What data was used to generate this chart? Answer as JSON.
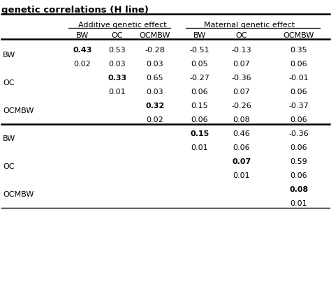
{
  "title": "genetic correlations (H line)",
  "col_headers": [
    "BW",
    "OC",
    "OCMBW",
    "BW",
    "OC",
    "OCMBW"
  ],
  "row_labels": [
    "BW",
    "OC",
    "OCMBW",
    "BW",
    "OC",
    "OCMBW"
  ],
  "additive_label": "Additive genetic effect",
  "maternal_label": "Maternal genetic effect",
  "cells": [
    [
      {
        "val": "0.43",
        "bold": true
      },
      {
        "val": "0.53",
        "bold": false
      },
      {
        "val": "-0.28",
        "bold": false
      },
      {
        "val": "-0.51",
        "bold": false
      },
      {
        "val": "-0.13",
        "bold": false
      },
      {
        "val": "0.35",
        "bold": false
      },
      {
        "val": "0.02",
        "bold": false
      },
      {
        "val": "0.03",
        "bold": false
      },
      {
        "val": "0.03",
        "bold": false
      },
      {
        "val": "0.05",
        "bold": false
      },
      {
        "val": "0.07",
        "bold": false
      },
      {
        "val": "0.06",
        "bold": false
      }
    ],
    [
      {
        "val": "",
        "bold": false
      },
      {
        "val": "0.33",
        "bold": true
      },
      {
        "val": "0.65",
        "bold": false
      },
      {
        "val": "-0.27",
        "bold": false
      },
      {
        "val": "-0.36",
        "bold": false
      },
      {
        "val": "-0.01",
        "bold": false
      },
      {
        "val": "",
        "bold": false
      },
      {
        "val": "0.01",
        "bold": false
      },
      {
        "val": "0.03",
        "bold": false
      },
      {
        "val": "0.06",
        "bold": false
      },
      {
        "val": "0.07",
        "bold": false
      },
      {
        "val": "0.06",
        "bold": false
      }
    ],
    [
      {
        "val": "",
        "bold": false
      },
      {
        "val": "",
        "bold": false
      },
      {
        "val": "0.32",
        "bold": true
      },
      {
        "val": "0.15",
        "bold": false
      },
      {
        "val": "-0.26",
        "bold": false
      },
      {
        "val": "-0.37",
        "bold": false
      },
      {
        "val": "",
        "bold": false
      },
      {
        "val": "",
        "bold": false
      },
      {
        "val": "0.02",
        "bold": false
      },
      {
        "val": "0.06",
        "bold": false
      },
      {
        "val": "0.08",
        "bold": false
      },
      {
        "val": "0.06",
        "bold": false
      }
    ],
    [
      {
        "val": "",
        "bold": false
      },
      {
        "val": "",
        "bold": false
      },
      {
        "val": "",
        "bold": false
      },
      {
        "val": "0.15",
        "bold": true
      },
      {
        "val": "0.46",
        "bold": false
      },
      {
        "val": "-0.36",
        "bold": false
      },
      {
        "val": "",
        "bold": false
      },
      {
        "val": "",
        "bold": false
      },
      {
        "val": "",
        "bold": false
      },
      {
        "val": "0.01",
        "bold": false
      },
      {
        "val": "0.06",
        "bold": false
      },
      {
        "val": "0.06",
        "bold": false
      }
    ],
    [
      {
        "val": "",
        "bold": false
      },
      {
        "val": "",
        "bold": false
      },
      {
        "val": "",
        "bold": false
      },
      {
        "val": "",
        "bold": false
      },
      {
        "val": "0.07",
        "bold": true
      },
      {
        "val": "0.59",
        "bold": false
      },
      {
        "val": "",
        "bold": false
      },
      {
        "val": "",
        "bold": false
      },
      {
        "val": "",
        "bold": false
      },
      {
        "val": "",
        "bold": false
      },
      {
        "val": "0.01",
        "bold": false
      },
      {
        "val": "0.06",
        "bold": false
      }
    ],
    [
      {
        "val": "",
        "bold": false
      },
      {
        "val": "",
        "bold": false
      },
      {
        "val": "",
        "bold": false
      },
      {
        "val": "",
        "bold": false
      },
      {
        "val": "",
        "bold": false
      },
      {
        "val": "0.08",
        "bold": true
      },
      {
        "val": "",
        "bold": false
      },
      {
        "val": "",
        "bold": false
      },
      {
        "val": "",
        "bold": false
      },
      {
        "val": "",
        "bold": false
      },
      {
        "val": "",
        "bold": false
      },
      {
        "val": "0.01",
        "bold": false
      }
    ]
  ],
  "bg_color": "#ffffff",
  "text_color": "#000000",
  "font_size": 8.0,
  "title_font_size": 9.5
}
